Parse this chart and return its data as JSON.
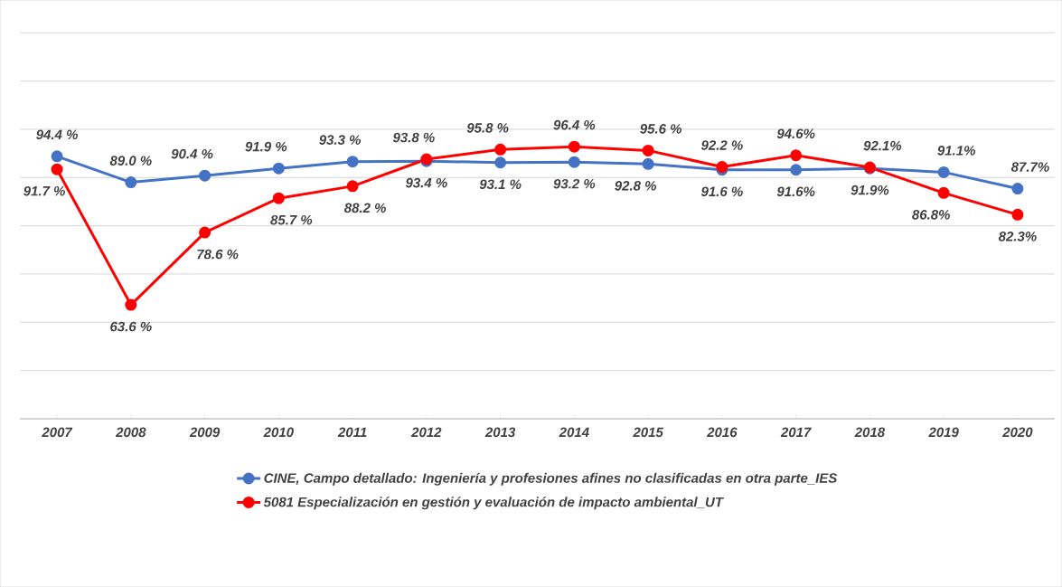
{
  "chart_data": {
    "type": "line",
    "categories": [
      "2007",
      "2008",
      "2009",
      "2010",
      "2011",
      "2012",
      "2013",
      "2014",
      "2015",
      "2016",
      "2017",
      "2018",
      "2019",
      "2020"
    ],
    "series": [
      {
        "name": "CINE,  Campo detallado: Ingeniería y profesiones afines  no clasificadas en otra parte_IES",
        "color": "#4472c4",
        "values": [
          94.4,
          89.0,
          90.4,
          91.9,
          93.3,
          93.4,
          93.1,
          93.2,
          92.8,
          91.6,
          91.6,
          91.9,
          91.1,
          87.7
        ],
        "value_labels": [
          "94.4 %",
          "89.0 %",
          "90.4 %",
          "91.9 %",
          "93.3 %",
          "93.4 %",
          "93.1 %",
          "93.2 %",
          "92.8 %",
          "91.6 %",
          "91.6%",
          "91.9%",
          "91.1%",
          "87.7%"
        ]
      },
      {
        "name": "5081 Especialización en gestión y evaluación de impacto ambiental_UT",
        "color": "#ff0000",
        "values": [
          91.7,
          63.6,
          78.6,
          85.7,
          88.2,
          93.8,
          95.8,
          96.4,
          95.6,
          92.2,
          94.6,
          92.1,
          86.8,
          82.3
        ],
        "value_labels": [
          "91.7 %",
          "63.6 %",
          "78.6 %",
          "85.7 %",
          "88.2 %",
          "93.8 %",
          "95.8 %",
          "96.4 %",
          "95.6 %",
          "92.2 %",
          "94.6%",
          "92.1%",
          "86.8%",
          "82.3%"
        ]
      }
    ],
    "data_labels": true,
    "grid": "y",
    "legend": "bottom",
    "marker": "circle",
    "line_style": "solid",
    "tick_labels": "x"
  }
}
